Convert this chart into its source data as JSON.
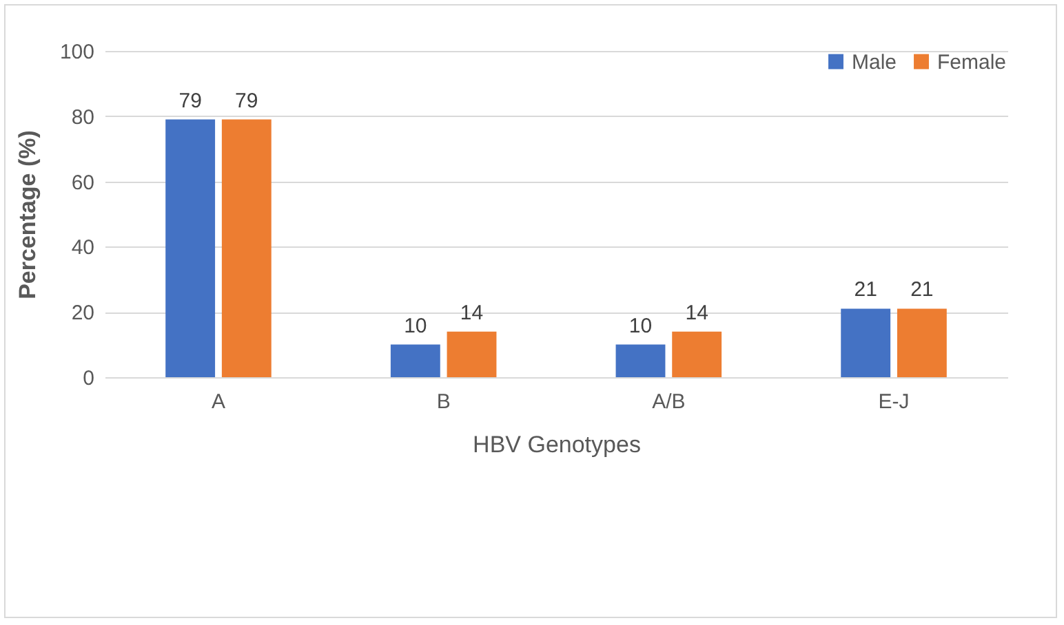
{
  "chart_data": {
    "type": "bar",
    "xlabel": "HBV Genotypes",
    "ylabel": "Percentage (%)",
    "categories": [
      "A",
      "B",
      "A/B",
      "E-J"
    ],
    "series": [
      {
        "name": "Male",
        "color": "#4472c4",
        "values": [
          79,
          10,
          10,
          21
        ]
      },
      {
        "name": "Female",
        "color": "#ed7d31",
        "values": [
          79,
          14,
          14,
          21
        ]
      }
    ],
    "ylim": [
      0,
      100
    ],
    "yticks": [
      0,
      20,
      40,
      60,
      80,
      100
    ],
    "grid": "y",
    "legend": "top right",
    "data_labels": true
  }
}
